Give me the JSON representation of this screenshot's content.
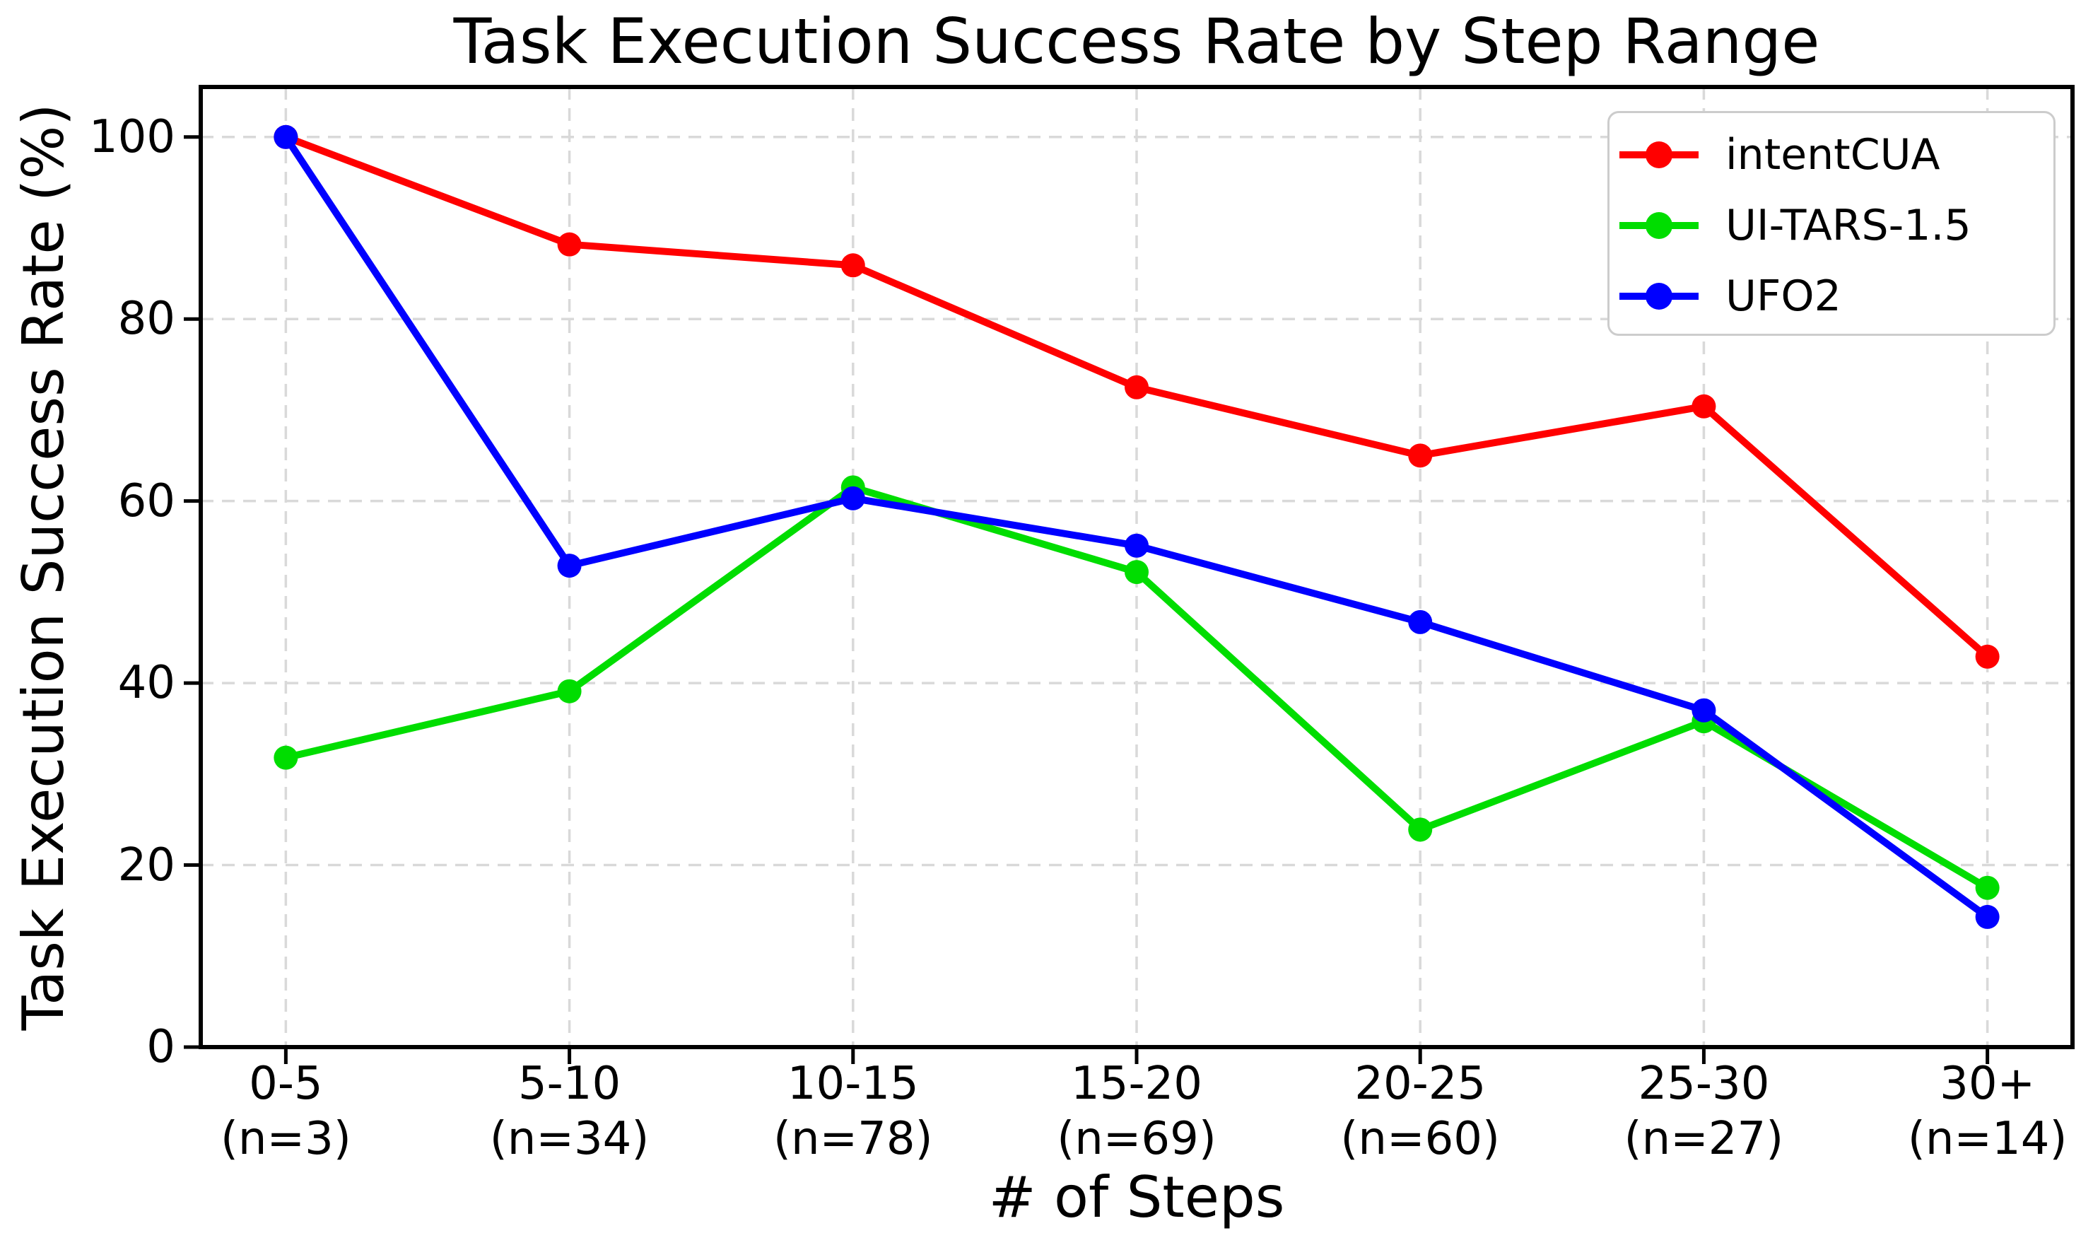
{
  "chart_data": {
    "type": "line",
    "title": "Task Execution Success Rate by Step Range",
    "xlabel": "# of Steps",
    "ylabel": "Task Execution Success Rate (%)",
    "categories": [
      "0-5",
      "5-10",
      "10-15",
      "15-20",
      "20-25",
      "25-30",
      "30+"
    ],
    "category_sublabels": [
      "(n=3)",
      "(n=34)",
      "(n=78)",
      "(n=69)",
      "(n=60)",
      "(n=27)",
      "(n=14)"
    ],
    "sample_sizes": [
      3,
      34,
      78,
      69,
      60,
      27,
      14
    ],
    "series": [
      {
        "name": "intentCUA",
        "color": "#ff0000",
        "values": [
          100.0,
          88.2,
          85.9,
          72.5,
          65.0,
          70.4,
          42.9
        ]
      },
      {
        "name": "UI-TARS-1.5",
        "color": "#00dd00",
        "values": [
          31.8,
          39.1,
          61.5,
          52.2,
          23.9,
          35.8,
          17.5
        ]
      },
      {
        "name": "UFO2",
        "color": "#0000ff",
        "values": [
          100.0,
          52.9,
          60.3,
          55.1,
          46.7,
          37.0,
          14.3
        ]
      }
    ],
    "yticks": [
      0,
      20,
      40,
      60,
      80,
      100
    ],
    "ylim": [
      0,
      105.5
    ],
    "grid": true,
    "grid_style": "dashed",
    "legend_position": "upper right",
    "background": "#ffffff"
  }
}
